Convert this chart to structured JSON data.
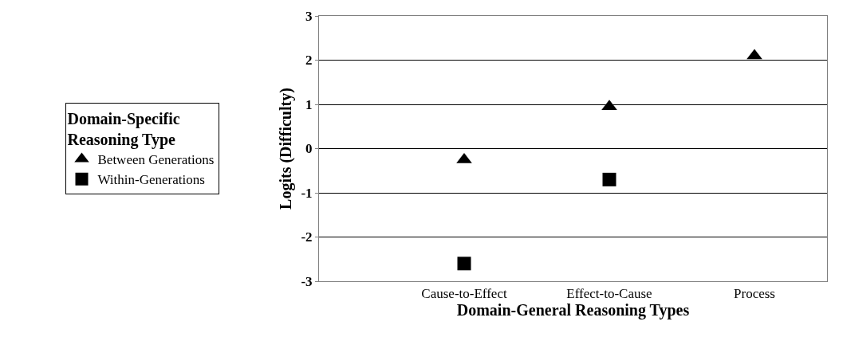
{
  "chart_data": {
    "type": "scatter",
    "xlabel": "Domain-General Reasoning Types",
    "ylabel": "Logits (Difficulty)",
    "legend_title": "Domain-Specific Reasoning Type",
    "categories": [
      "Cause-to-Effect",
      "Effect-to-Cause",
      "Process"
    ],
    "series": [
      {
        "name": "Between Generations",
        "color": "#000000",
        "marker": "triangle",
        "values": [
          -0.25,
          0.95,
          2.1
        ]
      },
      {
        "name": "Within-Generations",
        "color": "#000000",
        "marker": "square",
        "values": [
          -2.6,
          -0.7,
          null
        ]
      }
    ],
    "ylim": [
      -3,
      3
    ],
    "yticks": [
      -3,
      -2,
      -1,
      0,
      1,
      2,
      3
    ],
    "grid": "y",
    "legend": "left"
  }
}
